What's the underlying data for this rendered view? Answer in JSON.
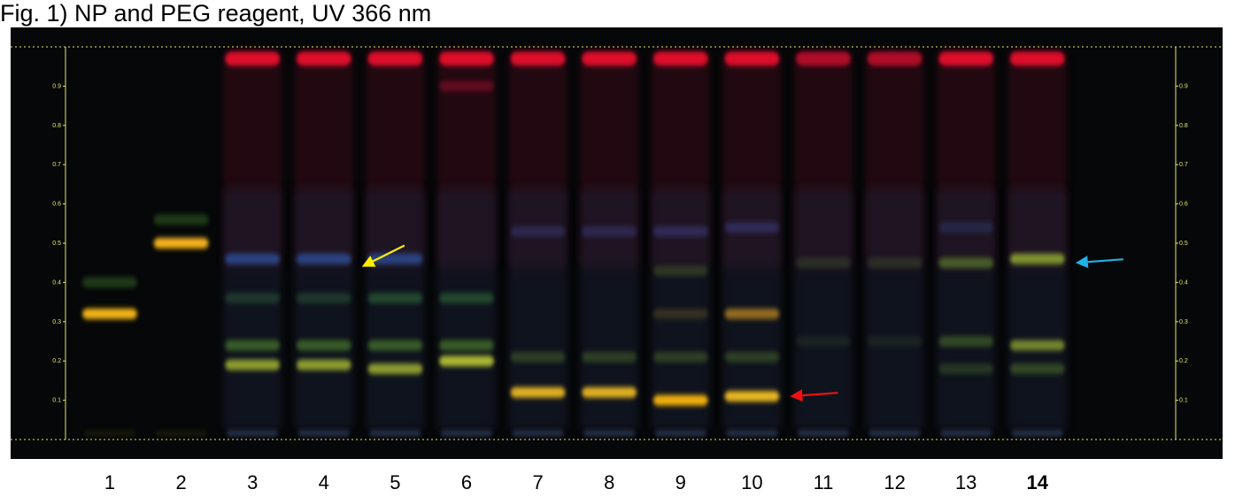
{
  "title": "Fig. 1) NP and PEG reagent, UV 366 nm",
  "colors": {
    "plate_background": "#050708",
    "front_line": "#e8e86a",
    "solvent_front_band": "#e0102a",
    "yellow_orange_band": "#f2b415",
    "blue_band": "#2f4f9a",
    "green_band": "#7a9a30",
    "arrow_yellow": "#ffee00",
    "arrow_red": "#ee1111",
    "arrow_cyan": "#22b0e6"
  },
  "rf_scale": {
    "ticks": [
      "0.1",
      "0.2",
      "0.3",
      "0.4",
      "0.5",
      "0.6",
      "0.7",
      "0.8",
      "0.9"
    ],
    "min": 0,
    "max": 1
  },
  "lanes": [
    {
      "label": "1",
      "bold": false,
      "bands": [
        {
          "rf": 0.32,
          "color": "#f2b415",
          "intensity": 1.0
        },
        {
          "rf": 0.4,
          "color": "#3a6a2a",
          "intensity": 0.5
        }
      ]
    },
    {
      "label": "2",
      "bold": false,
      "bands": [
        {
          "rf": 0.5,
          "color": "#f6b21a",
          "intensity": 1.0
        },
        {
          "rf": 0.56,
          "color": "#3a6a2a",
          "intensity": 0.5
        }
      ]
    },
    {
      "label": "3",
      "bold": false,
      "bands": [
        {
          "rf": 0.97,
          "color": "#e0102a",
          "intensity": 1.0
        },
        {
          "rf": 0.46,
          "color": "#2f4f9a",
          "intensity": 0.8
        },
        {
          "rf": 0.36,
          "color": "#2f5a3a",
          "intensity": 0.5
        },
        {
          "rf": 0.24,
          "color": "#4a7a2a",
          "intensity": 0.7
        },
        {
          "rf": 0.19,
          "color": "#9aaa30",
          "intensity": 0.9
        }
      ]
    },
    {
      "label": "4",
      "bold": false,
      "bands": [
        {
          "rf": 0.97,
          "color": "#e0102a",
          "intensity": 1.0
        },
        {
          "rf": 0.46,
          "color": "#2f4f9a",
          "intensity": 0.8
        },
        {
          "rf": 0.36,
          "color": "#2f5a3a",
          "intensity": 0.5
        },
        {
          "rf": 0.24,
          "color": "#4a7a2a",
          "intensity": 0.7
        },
        {
          "rf": 0.19,
          "color": "#9aaa30",
          "intensity": 0.9
        }
      ]
    },
    {
      "label": "5",
      "bold": false,
      "bands": [
        {
          "rf": 0.97,
          "color": "#e0102a",
          "intensity": 1.0
        },
        {
          "rf": 0.46,
          "color": "#2f4f9a",
          "intensity": 0.8
        },
        {
          "rf": 0.36,
          "color": "#2f6a3a",
          "intensity": 0.6
        },
        {
          "rf": 0.24,
          "color": "#4a7a2a",
          "intensity": 0.7
        },
        {
          "rf": 0.18,
          "color": "#9aaa30",
          "intensity": 0.9
        }
      ]
    },
    {
      "label": "6",
      "bold": false,
      "bands": [
        {
          "rf": 0.97,
          "color": "#e0102a",
          "intensity": 1.0
        },
        {
          "rf": 0.9,
          "color": "#a01030",
          "intensity": 0.5
        },
        {
          "rf": 0.36,
          "color": "#2f6a3a",
          "intensity": 0.6
        },
        {
          "rf": 0.24,
          "color": "#4a7a2a",
          "intensity": 0.7
        },
        {
          "rf": 0.2,
          "color": "#aab830",
          "intensity": 1.0
        }
      ]
    },
    {
      "label": "7",
      "bold": false,
      "bands": [
        {
          "rf": 0.97,
          "color": "#e0102a",
          "intensity": 1.0
        },
        {
          "rf": 0.53,
          "color": "#3a3a7a",
          "intensity": 0.5
        },
        {
          "rf": 0.21,
          "color": "#4a6a2a",
          "intensity": 0.5
        },
        {
          "rf": 0.12,
          "color": "#e0b020",
          "intensity": 1.0
        }
      ]
    },
    {
      "label": "8",
      "bold": false,
      "bands": [
        {
          "rf": 0.97,
          "color": "#e0102a",
          "intensity": 1.0
        },
        {
          "rf": 0.53,
          "color": "#3a3a7a",
          "intensity": 0.5
        },
        {
          "rf": 0.21,
          "color": "#4a6a2a",
          "intensity": 0.5
        },
        {
          "rf": 0.12,
          "color": "#e0b020",
          "intensity": 1.0
        }
      ]
    },
    {
      "label": "9",
      "bold": false,
      "bands": [
        {
          "rf": 0.97,
          "color": "#e0102a",
          "intensity": 1.0
        },
        {
          "rf": 0.53,
          "color": "#3a3a7a",
          "intensity": 0.6
        },
        {
          "rf": 0.43,
          "color": "#4a5a2a",
          "intensity": 0.5
        },
        {
          "rf": 0.32,
          "color": "#6a5a2a",
          "intensity": 0.4
        },
        {
          "rf": 0.21,
          "color": "#4a6a2a",
          "intensity": 0.5
        },
        {
          "rf": 0.1,
          "color": "#f0b010",
          "intensity": 1.0
        }
      ]
    },
    {
      "label": "10",
      "bold": false,
      "bands": [
        {
          "rf": 0.97,
          "color": "#e0102a",
          "intensity": 1.0
        },
        {
          "rf": 0.54,
          "color": "#3a3a7a",
          "intensity": 0.6
        },
        {
          "rf": 0.32,
          "color": "#b08020",
          "intensity": 0.8
        },
        {
          "rf": 0.21,
          "color": "#4a6a2a",
          "intensity": 0.5
        },
        {
          "rf": 0.11,
          "color": "#e8b820",
          "intensity": 1.0
        }
      ]
    },
    {
      "label": "11",
      "bold": false,
      "bands": [
        {
          "rf": 0.97,
          "color": "#c0102a",
          "intensity": 0.9
        },
        {
          "rf": 0.45,
          "color": "#3a4a2a",
          "intensity": 0.5
        },
        {
          "rf": 0.25,
          "color": "#2a3a2a",
          "intensity": 0.4
        }
      ]
    },
    {
      "label": "12",
      "bold": false,
      "bands": [
        {
          "rf": 0.97,
          "color": "#c0102a",
          "intensity": 0.9
        },
        {
          "rf": 0.45,
          "color": "#3a4a2a",
          "intensity": 0.5
        },
        {
          "rf": 0.25,
          "color": "#2a3a2a",
          "intensity": 0.4
        }
      ]
    },
    {
      "label": "13",
      "bold": false,
      "bands": [
        {
          "rf": 0.97,
          "color": "#e0102a",
          "intensity": 1.0
        },
        {
          "rf": 0.54,
          "color": "#2a3a6a",
          "intensity": 0.5
        },
        {
          "rf": 0.45,
          "color": "#5a7a2a",
          "intensity": 0.7
        },
        {
          "rf": 0.25,
          "color": "#4a6a2a",
          "intensity": 0.6
        },
        {
          "rf": 0.18,
          "color": "#3a5a2a",
          "intensity": 0.5
        }
      ]
    },
    {
      "label": "14",
      "bold": true,
      "bands": [
        {
          "rf": 0.97,
          "color": "#e0102a",
          "intensity": 1.0
        },
        {
          "rf": 0.46,
          "color": "#8aa030",
          "intensity": 0.9
        },
        {
          "rf": 0.24,
          "color": "#8aa030",
          "intensity": 0.8
        },
        {
          "rf": 0.18,
          "color": "#4a6a2a",
          "intensity": 0.6
        }
      ]
    }
  ],
  "arrows": [
    {
      "color": "#ffee00",
      "lane_after": "4",
      "rf": 0.44,
      "direction": "left"
    },
    {
      "color": "#ee1111",
      "lane_after": "10",
      "rf": 0.11,
      "direction": "left"
    },
    {
      "color": "#22b0e6",
      "lane_after": "14",
      "rf": 0.45,
      "direction": "left"
    }
  ]
}
